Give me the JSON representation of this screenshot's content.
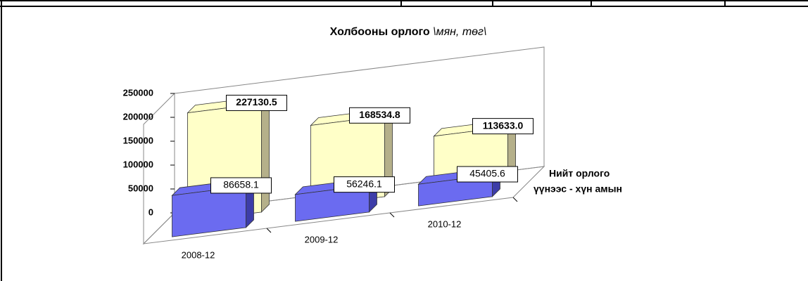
{
  "chart_data": {
    "type": "bar3d",
    "title": "Холбооны орлого",
    "subtitle": "\\мян, төг\\",
    "categories": [
      "2008-12",
      "2009-12",
      "2010-12"
    ],
    "series": [
      {
        "name": "Нийт орлого",
        "color": "#ffffc8",
        "side_color": "#b5b08a",
        "values": [
          227130.5,
          168534.8,
          113633.0
        ],
        "value_labels": [
          "227130.5",
          "168534.8",
          "113633.0"
        ]
      },
      {
        "name": "үүнээс - хүн амын",
        "color": "#6b6bf0",
        "side_color": "#3d3da8",
        "values": [
          86658.1,
          56246.1,
          45405.6
        ]
      }
    ],
    "ylim": [
      0,
      250000
    ],
    "yticks": [
      0,
      50000,
      100000,
      150000,
      200000,
      250000
    ],
    "grid": false
  }
}
